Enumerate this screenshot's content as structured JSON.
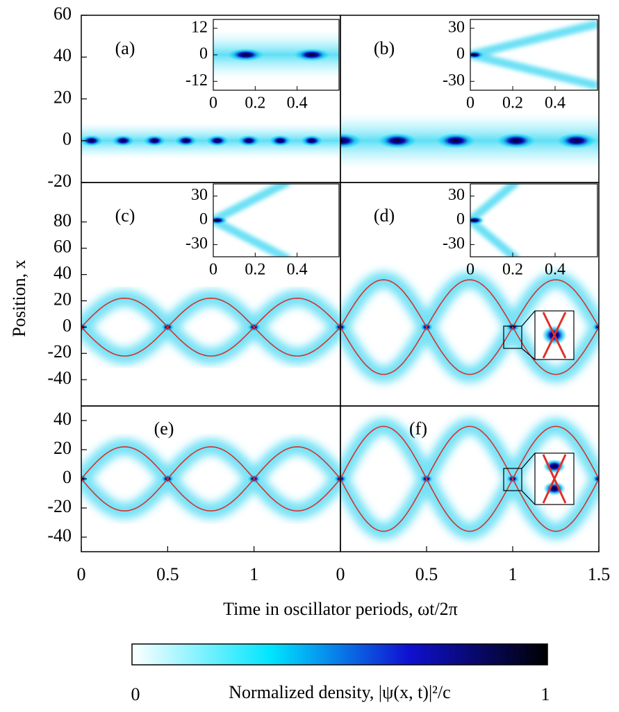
{
  "chart_data": [
    {
      "type": "heatmap",
      "panel_label": "(a)",
      "xlim": [
        0,
        1.5
      ],
      "ylim": [
        -20,
        60
      ],
      "yticks": [
        -20,
        0,
        20,
        40,
        60
      ],
      "inset": {
        "xlim": [
          0,
          0.6
        ],
        "ylim": [
          -16,
          16
        ],
        "xticks": [
          0,
          0.2,
          0.4
        ],
        "yticks": [
          -12,
          0,
          12
        ]
      }
    },
    {
      "type": "heatmap",
      "panel_label": "(b)",
      "xlim": [
        0,
        1.5
      ],
      "ylim": [
        -20,
        60
      ],
      "inset": {
        "xlim": [
          0,
          0.6
        ],
        "ylim": [
          -40,
          40
        ],
        "xticks": [
          0,
          0.2,
          0.4
        ],
        "yticks": [
          -30,
          0,
          30
        ]
      }
    },
    {
      "type": "heatmap",
      "panel_label": "(c)",
      "xlim": [
        0,
        1.5
      ],
      "ylim": [
        -60,
        110
      ],
      "yticks": [
        -40,
        -20,
        0,
        20,
        40,
        60,
        80
      ],
      "trajectory_amplitude": 22,
      "inset": {
        "xlim": [
          0,
          0.6
        ],
        "ylim": [
          -45,
          45
        ],
        "xticks": [
          0,
          0.2,
          0.4
        ],
        "yticks": [
          -30,
          0,
          30
        ]
      }
    },
    {
      "type": "heatmap",
      "panel_label": "(d)",
      "xlim": [
        0,
        1.5
      ],
      "ylim": [
        -60,
        110
      ],
      "trajectory_amplitude": 36,
      "inset": {
        "xlim": [
          0,
          0.6
        ],
        "ylim": [
          -45,
          45
        ],
        "xticks": [
          0,
          0.2,
          0.4
        ],
        "yticks": [
          -30,
          0,
          30
        ]
      }
    },
    {
      "type": "heatmap",
      "panel_label": "(e)",
      "xlim": [
        0,
        1.5
      ],
      "ylim": [
        -50,
        50
      ],
      "yticks": [
        -40,
        -20,
        0,
        20,
        40
      ],
      "xticks": [
        0,
        0.5,
        1
      ],
      "trajectory_amplitude": 22
    },
    {
      "type": "heatmap",
      "panel_label": "(f)",
      "xlim": [
        0,
        1.5
      ],
      "ylim": [
        -50,
        50
      ],
      "xticks": [
        0,
        0.5,
        1,
        1.5
      ],
      "trajectory_amplitude": 36
    }
  ],
  "x_label": "Time in oscillator periods, ωt/2π",
  "y_label": "Position, x",
  "colorbar": {
    "label": "Normalized density, |ψ(x, t)|²/c",
    "lim": [
      0,
      1
    ],
    "ticks": [
      0,
      1
    ],
    "colors": [
      "#ffffff",
      "#00e5ff",
      "#1010d0",
      "#000000"
    ]
  }
}
